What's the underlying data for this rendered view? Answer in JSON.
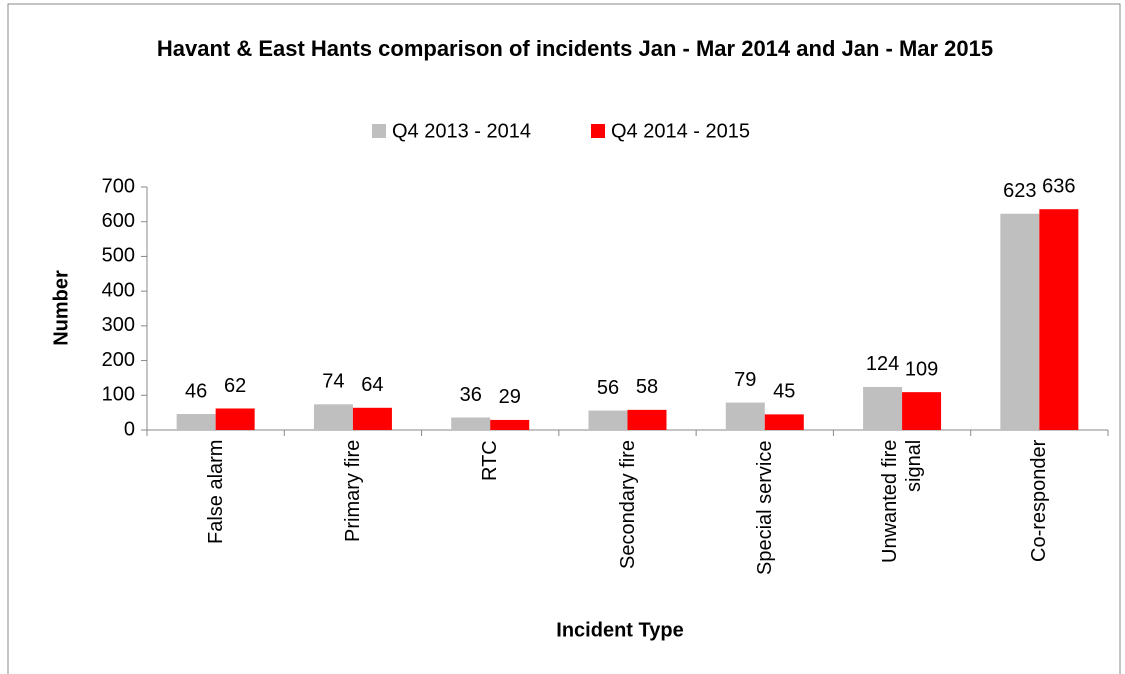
{
  "chart_data": {
    "type": "bar",
    "title": "Havant & East Hants comparison of incidents Jan - Mar 2014 and Jan - Mar 2015",
    "x_label": "Incident Type",
    "y_label": "Number",
    "categories": [
      "False alarm",
      "Primary fire",
      "RTC",
      "Secondary fire",
      "Special service",
      "Unwanted fire signal",
      "Co-responder"
    ],
    "series": [
      {
        "name": "Q4 2013 - 2014",
        "color": "#bfbfbf",
        "values": [
          46,
          74,
          36,
          56,
          79,
          124,
          623
        ]
      },
      {
        "name": "Q4 2014 - 2015",
        "color": "#ff0000",
        "values": [
          62,
          64,
          29,
          58,
          45,
          109,
          636
        ]
      }
    ],
    "ylim": [
      0,
      700
    ],
    "yticks": [
      0,
      100,
      200,
      300,
      400,
      500,
      600,
      700
    ],
    "grid": false,
    "legend": "top"
  }
}
